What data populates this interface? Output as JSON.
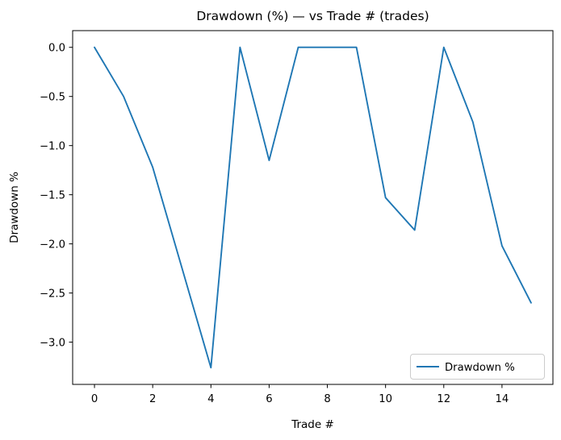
{
  "chart_data": {
    "type": "line",
    "title": "Drawdown (%) — vs Trade # (trades)",
    "xlabel": "Trade #",
    "ylabel": "Drawdown %",
    "x": [
      0,
      1,
      2,
      3,
      4,
      5,
      6,
      7,
      8,
      9,
      10,
      11,
      12,
      13,
      14,
      15
    ],
    "series": [
      {
        "name": "Drawdown %",
        "color": "#1f77b4",
        "values": [
          0.0,
          -0.5,
          -1.22,
          -2.24,
          -3.26,
          0.0,
          -1.15,
          0.0,
          0.0,
          0.0,
          -1.53,
          -1.86,
          0.0,
          -0.76,
          -2.02,
          -2.6
        ]
      }
    ],
    "xlim": [
      -0.75,
      15.75
    ],
    "ylim": [
      -3.43,
      0.17
    ],
    "x_ticks": [
      0,
      2,
      4,
      6,
      8,
      10,
      12,
      14
    ],
    "x_tick_labels": [
      "0",
      "2",
      "4",
      "6",
      "8",
      "10",
      "12",
      "14"
    ],
    "y_ticks": [
      0.0,
      -0.5,
      -1.0,
      -1.5,
      -2.0,
      -2.5,
      -3.0
    ],
    "y_tick_labels": [
      "0.0",
      "−0.5",
      "−1.0",
      "−1.5",
      "−2.0",
      "−2.5",
      "−3.0"
    ],
    "grid": false,
    "legend": {
      "position": "lower right",
      "entries": [
        "Drawdown %"
      ]
    }
  },
  "colors": {
    "line": "#1f77b4",
    "spine": "#000000",
    "tick": "#000000",
    "legend_border": "#cccccc",
    "background": "#ffffff"
  }
}
